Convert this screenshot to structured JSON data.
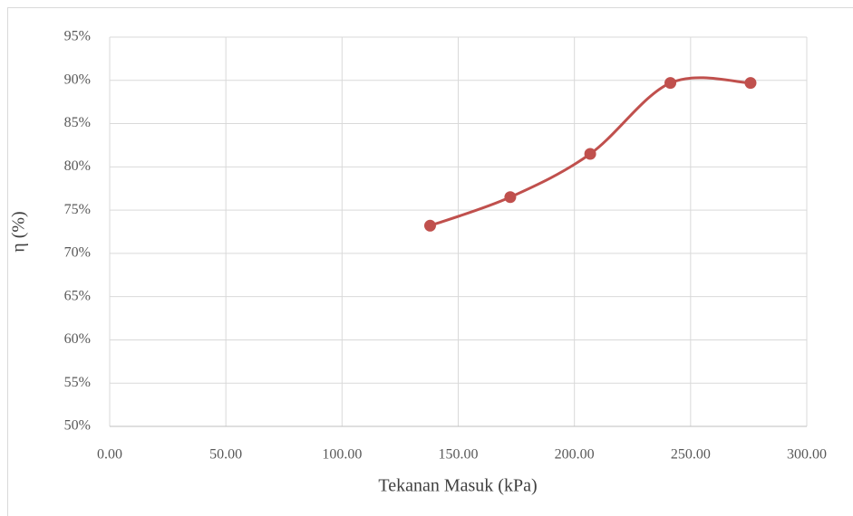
{
  "chart_data": {
    "type": "scatter",
    "x_label": "Tekanan Masuk (kPa)",
    "y_label": "η (%)",
    "series": [
      {
        "color": "#c0504d",
        "x": [
          137.9,
          172.4,
          206.8,
          241.3,
          275.8
        ],
        "values": [
          73.2,
          76.5,
          81.5,
          89.7,
          89.7
        ]
      }
    ],
    "smooth": true,
    "xlim": [
      0,
      300
    ],
    "xticks": [
      {
        "value": 0,
        "label": "0.00"
      },
      {
        "value": 50,
        "label": "50.00"
      },
      {
        "value": 100,
        "label": "100.00"
      },
      {
        "value": 150,
        "label": "150.00"
      },
      {
        "value": 200,
        "label": "200.00"
      },
      {
        "value": 250,
        "label": "250.00"
      },
      {
        "value": 300,
        "label": "300.00"
      }
    ],
    "ylim": [
      50,
      95
    ],
    "yticks": [
      {
        "value": 50,
        "label": "50%"
      },
      {
        "value": 55,
        "label": "55%"
      },
      {
        "value": 60,
        "label": "60%"
      },
      {
        "value": 65,
        "label": "65%"
      },
      {
        "value": 70,
        "label": "70%"
      },
      {
        "value": 75,
        "label": "75%"
      },
      {
        "value": 80,
        "label": "80%"
      },
      {
        "value": 85,
        "label": "85%"
      },
      {
        "value": 90,
        "label": "90%"
      },
      {
        "value": 95,
        "label": "95%"
      }
    ],
    "grid": true
  }
}
